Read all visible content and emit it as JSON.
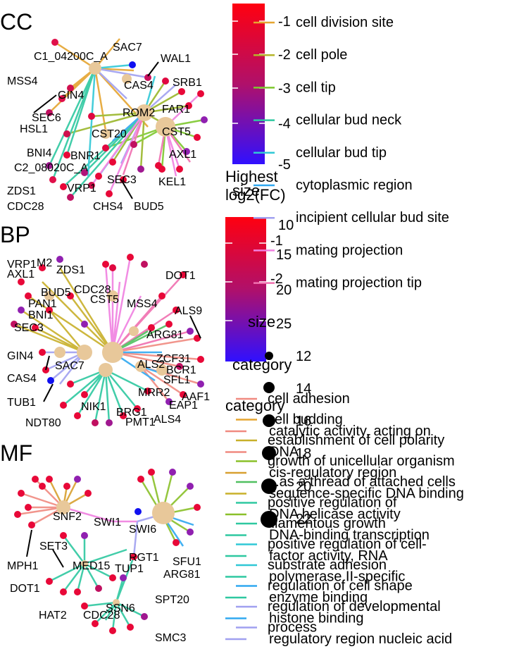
{
  "panels": [
    {
      "tag": "CC",
      "genes": [
        "C1_04200C_A",
        "SAC7",
        "WAL1",
        "MSS4",
        "GIN4",
        "CAS4",
        "SRB1",
        "SEC6",
        "ROM2",
        "FAR1",
        "HSL1",
        "CST20",
        "CST5",
        "BNI4",
        "BNR1",
        "AXL1",
        "C2_08020C_A",
        "SEC3",
        "KEL1",
        "ZDS1",
        "VRP1",
        "CDC28",
        "CHS4",
        "BUD5"
      ]
    },
    {
      "tag": "BP",
      "genes": [
        "VRP1",
        "M2",
        "AXL1",
        "ZDS1",
        "BUD5",
        "CDC28",
        "PAN1",
        "CST5",
        "BNI1",
        "SEC3",
        "MSS4",
        "DOT1",
        "ALS9",
        "ARG81",
        "GIN4",
        "ZCF31",
        "SAC7",
        "ALS2",
        "BCR1",
        "CAS4",
        "SFL1",
        "AAF1",
        "TUB1",
        "MRR2",
        "EAP1",
        "NIK1",
        "BRG1",
        "NDT80",
        "PMT1",
        "ALS4"
      ]
    },
    {
      "tag": "MF",
      "genes": [
        "SNF2",
        "SWI1",
        "SWI6",
        "SET3",
        "MED15",
        "RGT1",
        "TUP1",
        "SFU1",
        "MPH1",
        "ARG81",
        "DOT1",
        "SPT20",
        "SSN6",
        "HAT2",
        "CDC28",
        "SMC3"
      ]
    }
  ],
  "colorbar1": {
    "title_l1": "Highest",
    "title_l2": "log2(FC)",
    "ticks": [
      "-1",
      "-2",
      "-3",
      "-4",
      "-5"
    ],
    "gradient": [
      "#ff0000",
      "#0000ff"
    ]
  },
  "colorbar2": {
    "ticks": [
      "-1",
      "-2"
    ],
    "gradient": [
      "#ff0000",
      "#0000ff"
    ]
  },
  "size_legend1": {
    "title": "size",
    "values": [
      "10",
      "15",
      "20",
      "25"
    ]
  },
  "size_legend2": {
    "title": "size",
    "values": [
      "12",
      "14",
      "16",
      "18",
      "20",
      "22"
    ]
  },
  "category_titles": [
    "category",
    "category"
  ],
  "category_cc": [
    {
      "label": "cell division site",
      "color": "#e5a530"
    },
    {
      "label": "cell pole",
      "color": "#b5b52a"
    },
    {
      "label": "cell tip",
      "color": "#7ec82e"
    },
    {
      "label": "cellular bud neck",
      "color": "#2ec8a0"
    },
    {
      "label": "cellular bud tip",
      "color": "#30c8d6"
    },
    {
      "label": "cytoplasmic region",
      "color": "#30a8f0"
    },
    {
      "label": "incipient cellular bud site",
      "color": "#a0a0f0"
    },
    {
      "label": "mating projection",
      "color": "#f080e0"
    },
    {
      "label": "mating projection tip",
      "color": "#f070b0"
    }
  ],
  "category_bp": [
    {
      "label": "cell adhesion",
      "color": "#f08a80"
    },
    {
      "label": "cell budding",
      "color": "#e5a530"
    },
    {
      "label": "establishment of cell polarity",
      "color": "#c8b02a"
    },
    {
      "label": "growth of unicellular organism",
      "color": "#8ac02a"
    },
    {
      "label": "...as a thread of attached cells",
      "color": "#50c060"
    },
    {
      "label": "positive regulation of",
      "color": "#2ec8a0"
    },
    {
      "label": "filamentous growth",
      "color": "#2ec8a0"
    },
    {
      "label": "positive regulation of cell-",
      "color": "#30c8d6"
    },
    {
      "label": "substrate adhesion",
      "color": "#30c8d6"
    },
    {
      "label": "regulation of cell shape",
      "color": "#30a8f0"
    },
    {
      "label": "regulation of developmental",
      "color": "#a0a0f0"
    },
    {
      "label": "process",
      "color": "#a0a0f0"
    }
  ],
  "category_mf": [
    {
      "label": "catalytic activity, acting on",
      "color": "#f08a80"
    },
    {
      "label": "DNA",
      "color": "#f08a80"
    },
    {
      "label": "cis-regulatory region",
      "color": "#d8a030"
    },
    {
      "label": "sequence-specific DNA binding",
      "color": "#c8b02a"
    },
    {
      "label": "DNA helicase activity",
      "color": "#8ac02a"
    },
    {
      "label": "DNA-binding transcription",
      "color": "#2ec8a0"
    },
    {
      "label": "factor activity, RNA",
      "color": "#2ec8a0"
    },
    {
      "label": "polymerase II-specific",
      "color": "#2ec8a0"
    },
    {
      "label": "enzyme binding",
      "color": "#2ec8a0"
    },
    {
      "label": "histone binding",
      "color": "#30a8f0"
    },
    {
      "label": "regulatory region nucleic acid",
      "color": "#a0a0f0"
    }
  ]
}
